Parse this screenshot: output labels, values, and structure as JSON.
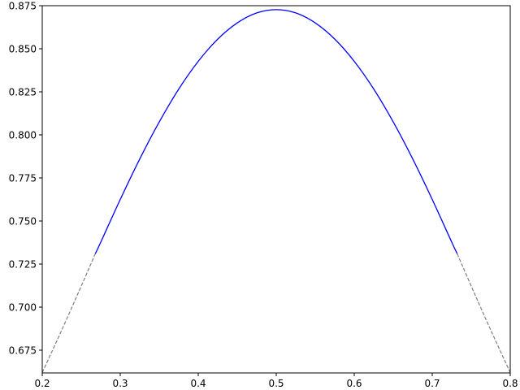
{
  "chart_data": {
    "type": "line",
    "title": "",
    "xlabel": "",
    "ylabel": "",
    "xlim": [
      0.2,
      0.8
    ],
    "ylim": [
      0.6618,
      0.875
    ],
    "grid": false,
    "xticks": [
      "0.2",
      "0.3",
      "0.4",
      "0.5",
      "0.6",
      "0.7",
      "0.8"
    ],
    "yticks": [
      "0.675",
      "0.700",
      "0.725",
      "0.750",
      "0.775",
      "0.800",
      "0.825",
      "0.850",
      "0.875"
    ],
    "series": [
      {
        "style": "dashed",
        "color": "#808080",
        "x": [
          0.2,
          0.225,
          0.25,
          0.268
        ],
        "y": [
          0.662,
          0.6867,
          0.7122,
          0.731
        ]
      },
      {
        "style": "solid",
        "color": "#0000ff",
        "x": [
          0.268,
          0.275,
          0.3,
          0.325,
          0.35,
          0.375,
          0.4,
          0.425,
          0.45,
          0.475,
          0.5,
          0.525,
          0.55,
          0.575,
          0.6,
          0.625,
          0.65,
          0.675,
          0.7,
          0.725,
          0.732
        ],
        "y": [
          0.731,
          0.7377,
          0.7625,
          0.786,
          0.8075,
          0.8266,
          0.8427,
          0.8556,
          0.865,
          0.8708,
          0.8727,
          0.8708,
          0.865,
          0.8556,
          0.8427,
          0.8266,
          0.8075,
          0.786,
          0.7625,
          0.7377,
          0.731
        ]
      },
      {
        "style": "dashed",
        "color": "#808080",
        "x": [
          0.732,
          0.75,
          0.775,
          0.8
        ],
        "y": [
          0.731,
          0.7122,
          0.6867,
          0.662
        ]
      }
    ]
  }
}
